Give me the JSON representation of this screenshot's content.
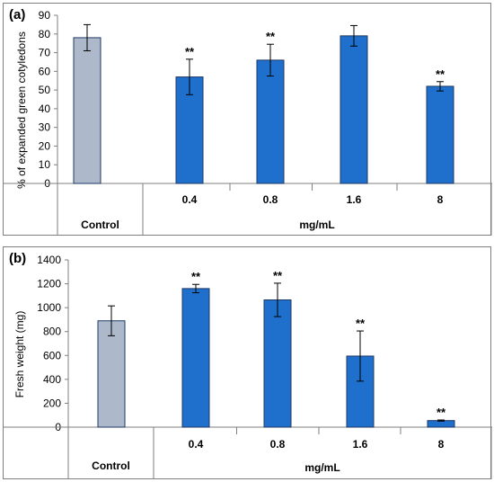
{
  "colors": {
    "control": "#adb9ca",
    "treatment": "#1f6fcc",
    "bar_border": "#1f3864",
    "error": "#000000",
    "axis": "#7f7f7f"
  },
  "chart_data": [
    {
      "type": "bar",
      "panel_label": "(a)",
      "ylabel": "% of expanded green cotyledons",
      "ylim": [
        0,
        90
      ],
      "yticks": [
        0,
        10,
        20,
        30,
        40,
        50,
        60,
        70,
        80,
        90
      ],
      "categories": [
        "Control",
        "0.4",
        "0.8",
        "1.6",
        "8"
      ],
      "group_label": "mg/mL",
      "values": [
        78,
        57,
        66,
        79,
        52
      ],
      "errors": [
        7,
        9.5,
        8.5,
        5.5,
        2.5
      ],
      "significance": [
        "",
        "**",
        "**",
        "",
        "**"
      ]
    },
    {
      "type": "bar",
      "panel_label": "(b)",
      "ylabel": "Fresh weight (mg)",
      "ylim": [
        0,
        1400
      ],
      "yticks": [
        0,
        200,
        400,
        600,
        800,
        1000,
        1200,
        1400
      ],
      "categories": [
        "Control",
        "0.4",
        "0.8",
        "1.6",
        "8"
      ],
      "group_label": "mg/mL",
      "values": [
        890,
        1160,
        1065,
        595,
        55
      ],
      "errors": [
        125,
        35,
        140,
        210,
        5
      ],
      "significance": [
        "",
        "**",
        "**",
        "**",
        "**"
      ]
    }
  ]
}
